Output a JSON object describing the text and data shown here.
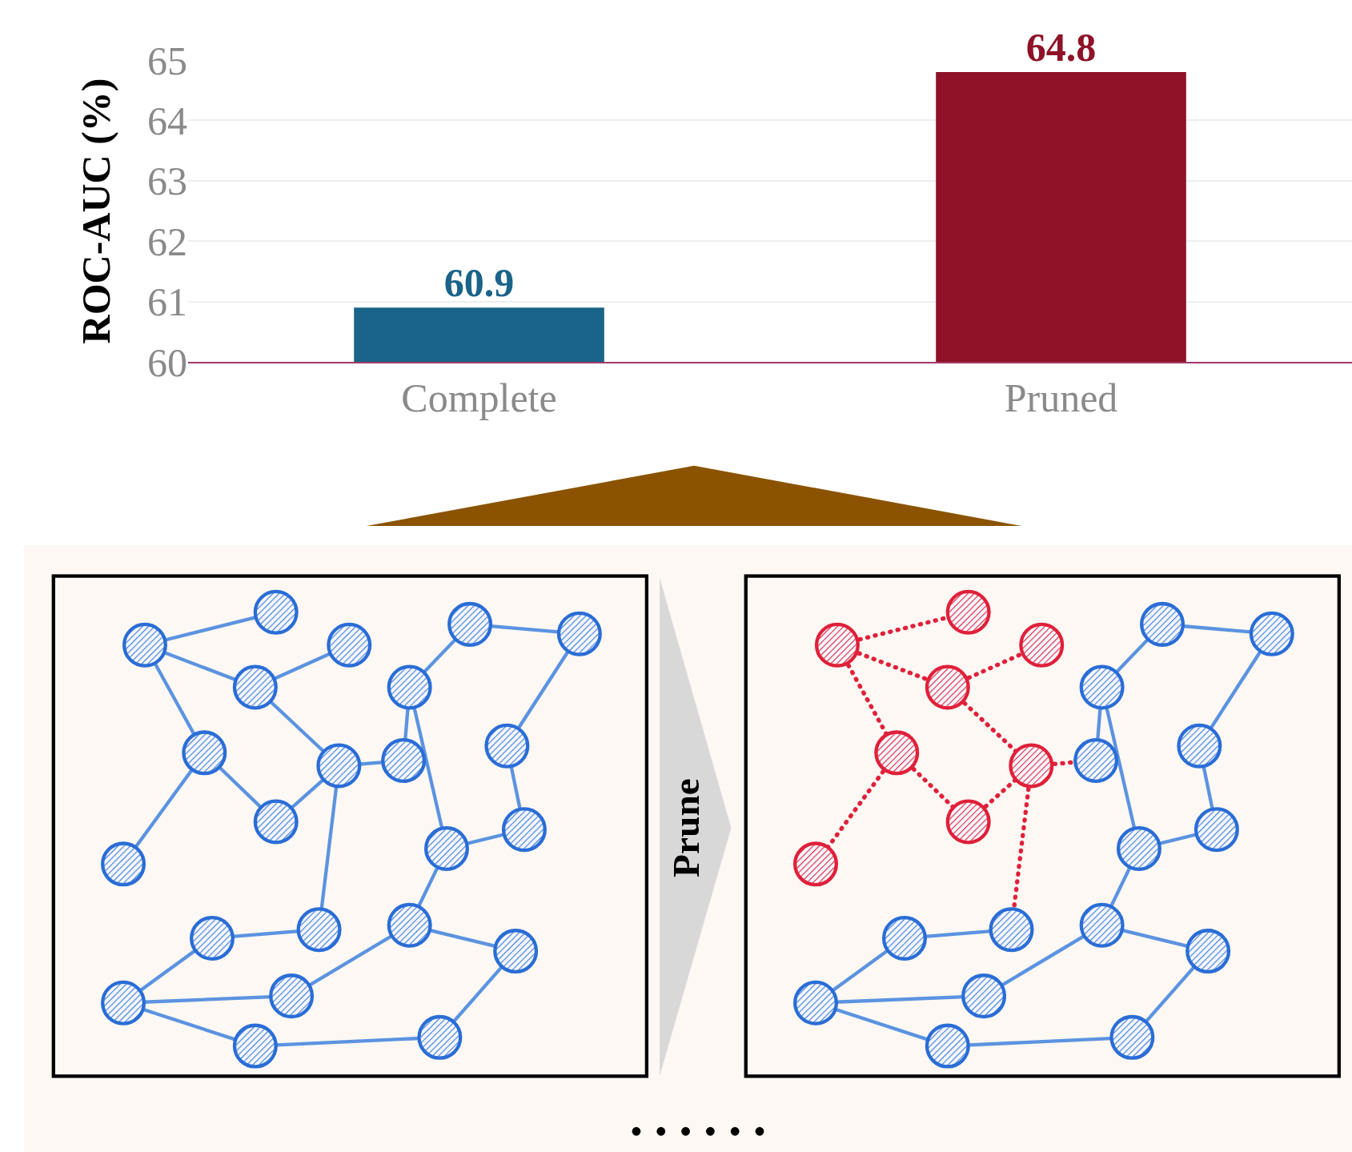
{
  "chart_data": {
    "type": "bar",
    "categories": [
      "Complete",
      "Pruned"
    ],
    "values": [
      60.9,
      64.8
    ],
    "colors": [
      "#1a6389",
      "#8f1228"
    ],
    "ylabel": "ROC-AUC (%)",
    "ylim": [
      60,
      65
    ],
    "yticks": [
      60,
      61,
      62,
      63,
      64,
      65
    ],
    "grid": "y",
    "data_labels": true,
    "annotations": [
      "Prune"
    ]
  }
}
